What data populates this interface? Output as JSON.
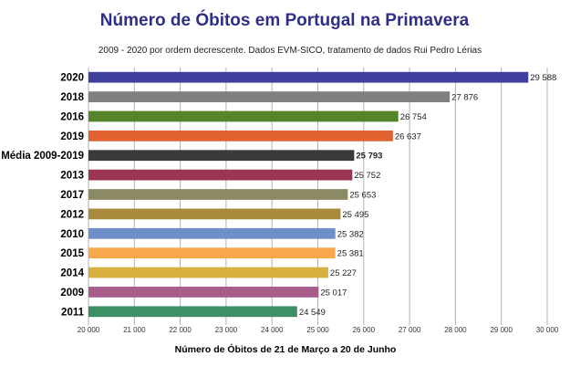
{
  "chart_data": {
    "type": "bar",
    "orientation": "horizontal",
    "title": "Número de Óbitos em Portugal na Primavera",
    "subtitle": "2009 - 2020 por ordem decrescente. Dados EVM-SICO, tratamento de dados Rui Pedro Lérias",
    "xlabel": "Número de Óbitos de 21 de Março a 20 de Junho",
    "ylabel": "",
    "xlim": [
      20000,
      30000
    ],
    "xticks": [
      20000,
      21000,
      22000,
      23000,
      24000,
      25000,
      26000,
      27000,
      28000,
      29000,
      30000
    ],
    "xtick_labels": [
      "20 000",
      "21 000",
      "22 000",
      "23 000",
      "24 000",
      "25 000",
      "26 000",
      "27 000",
      "28 000",
      "29 000",
      "30 000"
    ],
    "grid": true,
    "categories": [
      "2020",
      "2018",
      "2016",
      "2019",
      "Média 2009-2019",
      "2013",
      "2017",
      "2012",
      "2010",
      "2015",
      "2014",
      "2009",
      "2011"
    ],
    "values": [
      29588,
      27876,
      26754,
      26637,
      25793,
      25752,
      25653,
      25495,
      25382,
      25381,
      25227,
      25017,
      24549
    ],
    "value_labels": [
      "29 588",
      "27 876",
      "26 754",
      "26 637",
      "25 793",
      "25 752",
      "25 653",
      "25 495",
      "25 382",
      "25 381",
      "25 227",
      "25 017",
      "24 549"
    ],
    "bold_value_labels": [
      false,
      false,
      false,
      false,
      true,
      false,
      false,
      false,
      false,
      false,
      false,
      false,
      false
    ],
    "colors": [
      "#3f3f9e",
      "#808080",
      "#55842a",
      "#e0622f",
      "#3a3a3a",
      "#9c3454",
      "#8c8a64",
      "#aa8a3c",
      "#6e8fc8",
      "#f7a84a",
      "#d8b040",
      "#a85c8c",
      "#3c9064"
    ]
  }
}
